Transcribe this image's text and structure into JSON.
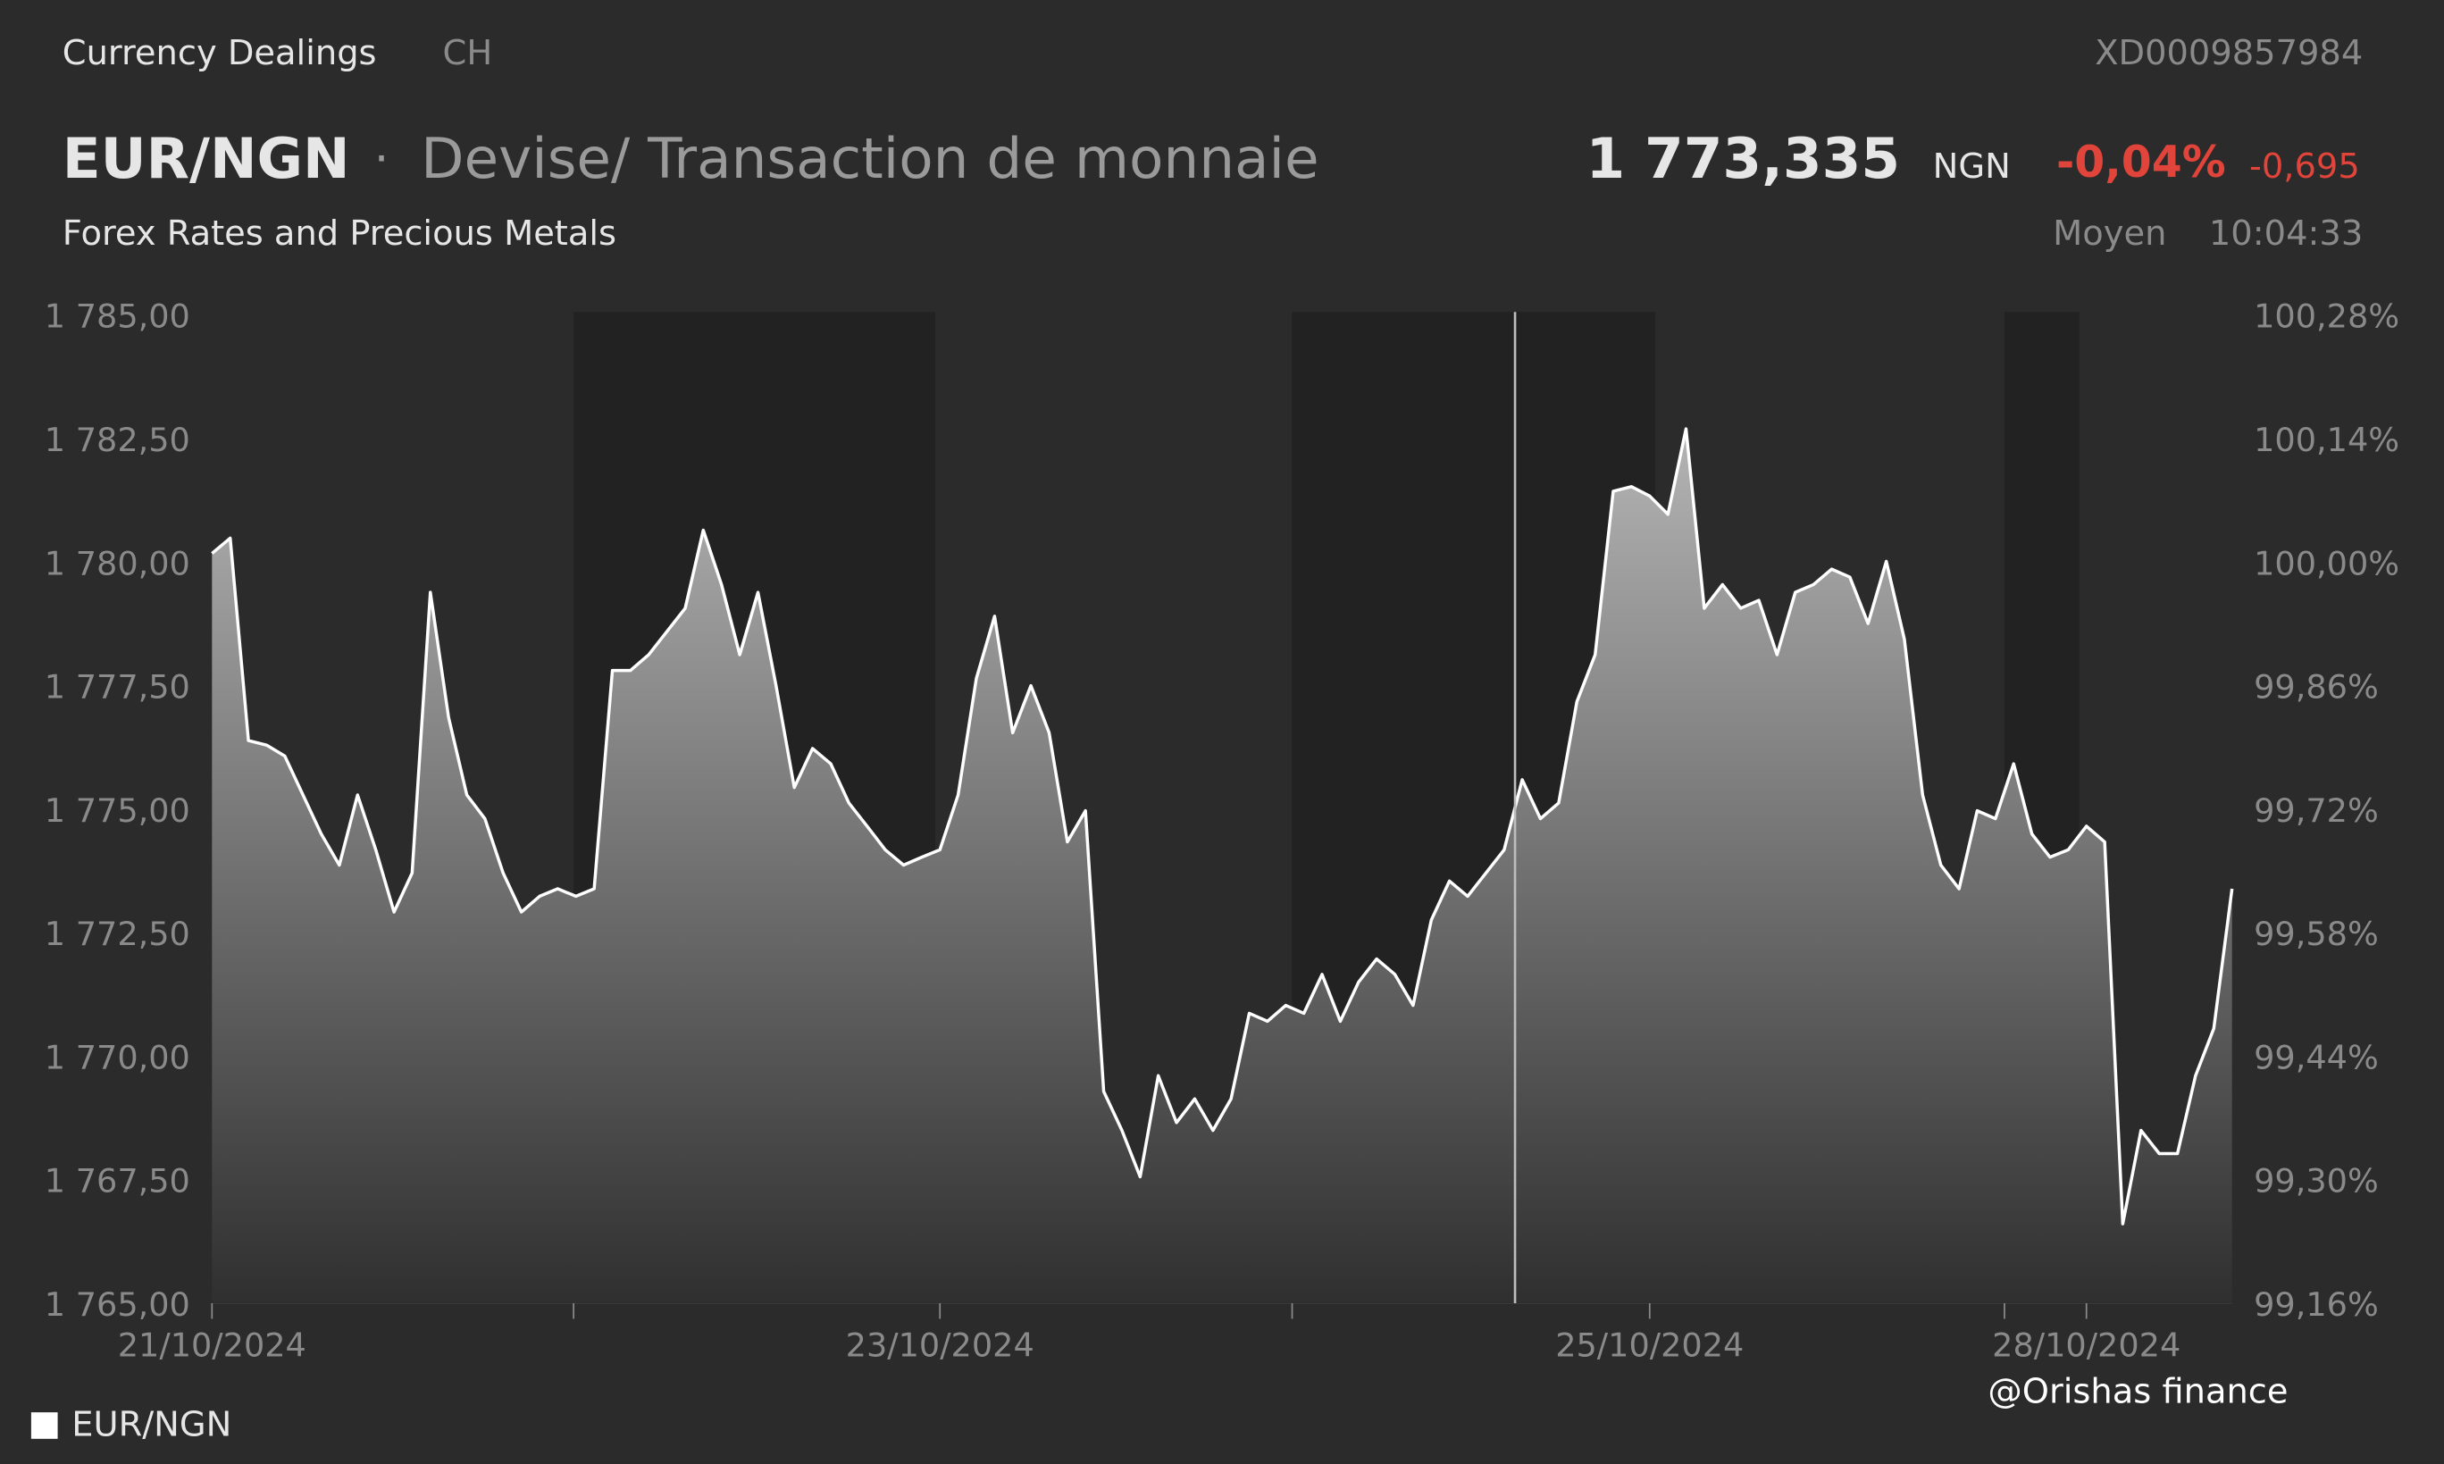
{
  "header": {
    "source": "Currency Dealings",
    "country": "CH",
    "isin": "XD0009857984",
    "symbol": "EUR/NGN",
    "name": "Devise/ Transaction de monnaie",
    "price": "1 773,335",
    "currency": "NGN",
    "change_pct": "-0,04%",
    "change_abs": "-0,695",
    "category": "Forex Rates and Precious Metals",
    "price_type": "Moyen",
    "time": "10:04:33"
  },
  "watermark": "@Orishas finance",
  "chart_data": {
    "type": "line",
    "color": "#ffffff",
    "categories": [
      "21/10/2024",
      null,
      null,
      null,
      null,
      null,
      null,
      null,
      null,
      null,
      null,
      null,
      null,
      null,
      null,
      null,
      null,
      null,
      null,
      null,
      null,
      null,
      null,
      null,
      null,
      null,
      null,
      null,
      null,
      null,
      null,
      null,
      null,
      null,
      null,
      null,
      null,
      null,
      null,
      null,
      "23/10/2024",
      null,
      null,
      null,
      null,
      null,
      null,
      null,
      null,
      null,
      null,
      null,
      null,
      null,
      null,
      null,
      null,
      null,
      null,
      null,
      null,
      null,
      null,
      null,
      null,
      null,
      null,
      null,
      null,
      null,
      null,
      null,
      null,
      null,
      null,
      null,
      null,
      null,
      null,
      "25/10/2024",
      null,
      null,
      null,
      null,
      null,
      null,
      null,
      null,
      null,
      null,
      null,
      null,
      null,
      null,
      null,
      null,
      null,
      null,
      null,
      null,
      null,
      null,
      null,
      "28/10/2024",
      null,
      null,
      null,
      null,
      null,
      null,
      null,
      null
    ],
    "series": [
      {
        "name": "EUR/NGN",
        "color": "#ffffff",
        "values": [
          1780.24,
          1780.55,
          1776.45,
          1776.36,
          1776.14,
          1775.35,
          1774.56,
          1773.93,
          1775.35,
          1774.24,
          1772.98,
          1773.77,
          1779.45,
          1776.92,
          1775.35,
          1774.87,
          1773.77,
          1772.98,
          1773.3,
          1773.45,
          1773.3,
          1773.45,
          1777.87,
          1777.87,
          1778.19,
          1778.66,
          1779.13,
          1780.71,
          1779.61,
          1778.19,
          1779.45,
          1777.56,
          1775.5,
          1776.29,
          1775.98,
          1775.19,
          1774.72,
          1774.24,
          1773.93,
          1774.09,
          1774.24,
          1775.35,
          1777.71,
          1778.97,
          1776.61,
          1777.56,
          1776.61,
          1774.4,
          1775.03,
          1769.35,
          1768.56,
          1767.62,
          1769.67,
          1768.72,
          1769.2,
          1768.56,
          1769.2,
          1770.93,
          1770.77,
          1771.09,
          1770.93,
          1771.72,
          1770.77,
          1771.56,
          1772.03,
          1771.72,
          1771.09,
          1772.82,
          1773.61,
          1773.3,
          1773.77,
          1774.24,
          1775.66,
          1774.87,
          1775.19,
          1777.24,
          1778.19,
          1781.5,
          1781.59,
          1781.4,
          1781.03,
          1782.76,
          1779.13,
          1779.61,
          1779.13,
          1779.29,
          1778.19,
          1779.45,
          1779.61,
          1779.92,
          1779.76,
          1778.82,
          1780.08,
          1778.5,
          1775.35,
          1773.93,
          1773.45,
          1775.03,
          1774.87,
          1775.98,
          1774.56,
          1774.09,
          1774.24,
          1774.72,
          1774.4,
          1766.67,
          1768.56,
          1768.09,
          1768.09,
          1769.67,
          1770.62,
          1773.45
        ]
      }
    ],
    "ylim": [
      1765,
      1785
    ],
    "yticks": [
      {
        "value": 1765,
        "label": "1 765,00"
      },
      {
        "value": 1767.5,
        "label": "1 767,50"
      },
      {
        "value": 1770,
        "label": "1 770,00"
      },
      {
        "value": 1772.5,
        "label": "1 772,50"
      },
      {
        "value": 1775,
        "label": "1 775,00"
      },
      {
        "value": 1777.5,
        "label": "1 777,50"
      },
      {
        "value": 1780,
        "label": "1 780,00"
      },
      {
        "value": 1782.5,
        "label": "1 782,50"
      },
      {
        "value": 1785,
        "label": "1 785,00"
      }
    ],
    "y2lim": [
      99.16,
      100.28
    ],
    "y2ticks": [
      {
        "value": 99.16,
        "label": "99,16%"
      },
      {
        "value": 99.3,
        "label": "99,30%"
      },
      {
        "value": 99.44,
        "label": "99,44%"
      },
      {
        "value": 99.58,
        "label": "99,58%"
      },
      {
        "value": 99.72,
        "label": "99,72%"
      },
      {
        "value": 99.86,
        "label": "99,86%"
      },
      {
        "value": 100.0,
        "label": "100,00%"
      },
      {
        "value": 100.14,
        "label": "100,14%"
      },
      {
        "value": 100.28,
        "label": "100,28%"
      }
    ],
    "legend": "bottom-left"
  }
}
